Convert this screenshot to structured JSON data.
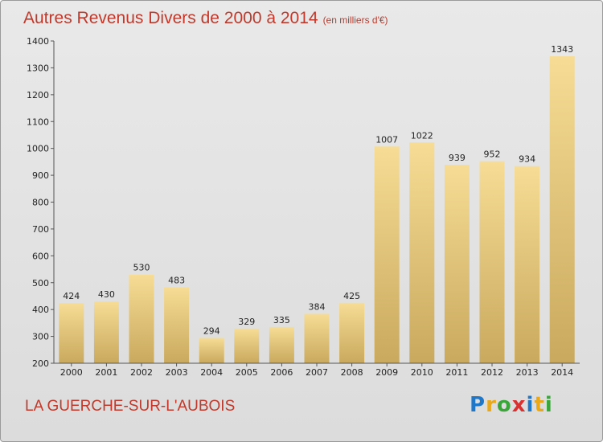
{
  "chart_data": {
    "type": "bar",
    "title": "Autres Revenus Divers de 2000 à 2014",
    "subtitle": "(en milliers d'€)",
    "categories": [
      "2000",
      "2001",
      "2002",
      "2003",
      "2004",
      "2005",
      "2006",
      "2007",
      "2008",
      "2009",
      "2010",
      "2011",
      "2012",
      "2013",
      "2014"
    ],
    "values": [
      424,
      430,
      530,
      483,
      294,
      329,
      335,
      384,
      425,
      1007,
      1022,
      939,
      952,
      934,
      1343
    ],
    "ylim": [
      200,
      1400
    ],
    "yticks": [
      200,
      300,
      400,
      500,
      600,
      700,
      800,
      900,
      1000,
      1100,
      1200,
      1300,
      1400
    ],
    "grid": false,
    "bar_color": "#e8c979"
  },
  "location": "LA GUERCHE-SUR-L'AUBOIS",
  "logo": {
    "letters": [
      "P",
      "r",
      "o",
      "x",
      "i",
      "t",
      "i"
    ],
    "colors": [
      "#1f77c9",
      "#e8a81a",
      "#3aa63a",
      "#d93030",
      "#1f77c9",
      "#e8a81a",
      "#3aa63a"
    ]
  }
}
